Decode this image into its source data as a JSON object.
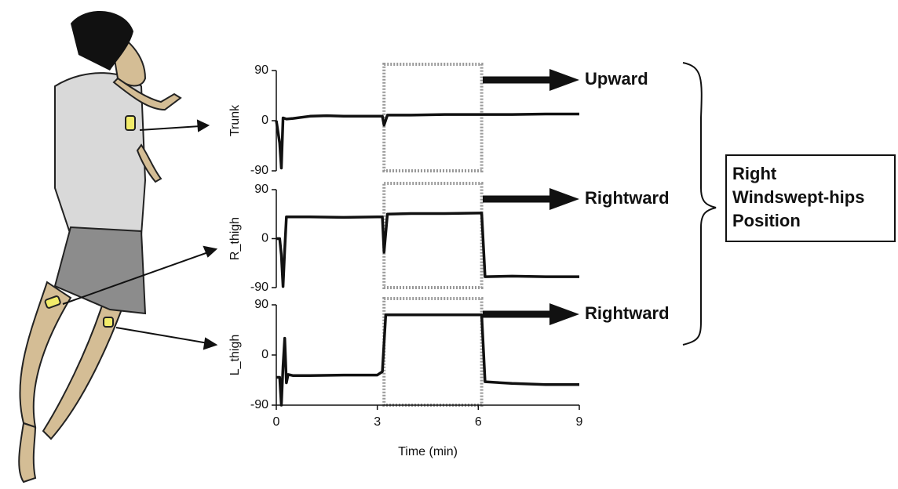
{
  "chart_data": [
    {
      "type": "line",
      "ylabel": "Trunk",
      "annotation": "Upward",
      "xlim": [
        0,
        9
      ],
      "ylim": [
        -90,
        90
      ],
      "yticks": [
        -90,
        0,
        90
      ],
      "highlight_xrange": [
        3.2,
        6.1
      ],
      "color": "#111111",
      "x": [
        0,
        0.05,
        0.1,
        0.15,
        0.2,
        0.3,
        0.5,
        1,
        1.5,
        2,
        2.5,
        3,
        3.15,
        3.2,
        3.3,
        4,
        5,
        6,
        7,
        8,
        9
      ],
      "values": [
        0,
        -20,
        -40,
        -85,
        5,
        3,
        4,
        8,
        9,
        8,
        8,
        8,
        8,
        -8,
        10,
        10,
        11,
        11,
        11,
        12,
        12
      ]
    },
    {
      "type": "line",
      "ylabel": "R_thigh",
      "annotation": "Rightward",
      "xlim": [
        0,
        9
      ],
      "ylim": [
        -90,
        90
      ],
      "yticks": [
        -90,
        0,
        90
      ],
      "highlight_xrange": [
        3.2,
        6.1
      ],
      "color": "#111111",
      "x": [
        0,
        0.1,
        0.15,
        0.2,
        0.25,
        0.3,
        1,
        2,
        3,
        3.15,
        3.2,
        3.3,
        4,
        5,
        6,
        6.1,
        6.2,
        7,
        8,
        9
      ],
      "values": [
        0,
        0,
        -30,
        -88,
        -20,
        40,
        40,
        39,
        40,
        40,
        -25,
        45,
        46,
        46,
        47,
        47,
        -70,
        -69,
        -70,
        -70
      ]
    },
    {
      "type": "line",
      "ylabel": "L_thigh",
      "annotation": "Rightward",
      "xlabel": "Time (min)",
      "xlim": [
        0,
        9
      ],
      "ylim": [
        -90,
        90
      ],
      "yticks": [
        -90,
        0,
        90
      ],
      "xticks": [
        0,
        3,
        6,
        9
      ],
      "highlight_xrange": [
        3.2,
        6.1
      ],
      "color": "#111111",
      "x": [
        0,
        0.1,
        0.15,
        0.2,
        0.25,
        0.3,
        0.35,
        0.5,
        1,
        2,
        3,
        3.15,
        3.25,
        4,
        5,
        6,
        6.1,
        6.2,
        7,
        8,
        9
      ],
      "values": [
        -40,
        -40,
        -90,
        -20,
        30,
        -50,
        -35,
        -37,
        -37,
        -36,
        -36,
        -30,
        72,
        72,
        72,
        72,
        72,
        -48,
        -51,
        -53,
        -53
      ]
    }
  ],
  "summary_label": [
    "Right",
    "Windswept-hips",
    "Position"
  ]
}
